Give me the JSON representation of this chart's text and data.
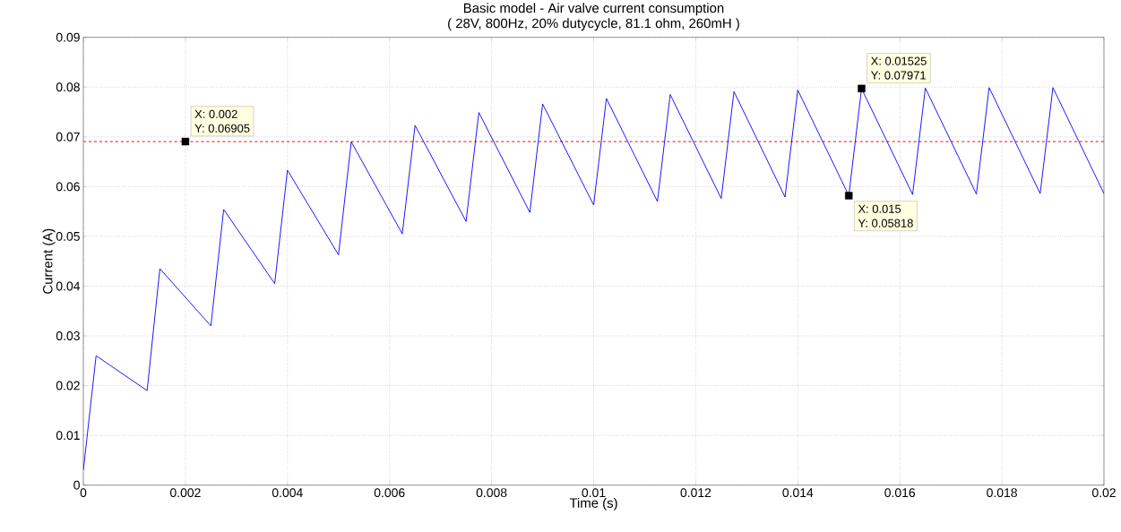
{
  "chart_data": {
    "type": "line",
    "title": "Basic model - Air valve current consumption",
    "subtitle": "( 28V, 800Hz, 20% dutycycle, 81.1 ohm, 260mH )",
    "xlabel": "Time (s)",
    "ylabel": "Current (A)",
    "xlim": [
      0,
      0.02
    ],
    "ylim": [
      0,
      0.09
    ],
    "xticks": [
      0,
      0.002,
      0.004,
      0.006,
      0.008,
      0.01,
      0.012,
      0.014,
      0.016,
      0.018,
      0.02
    ],
    "yticks": [
      0,
      0.01,
      0.02,
      0.03,
      0.04,
      0.05,
      0.06,
      0.07,
      0.08,
      0.09
    ],
    "grid": true,
    "marker": "none",
    "line_style": "solid",
    "series": [
      {
        "color": "#0000ff",
        "x": [
          0,
          0.00025,
          0.00125,
          0.0015,
          0.0025,
          0.00275,
          0.00375,
          0.004,
          0.005,
          0.00525,
          0.00625,
          0.0065,
          0.0075,
          0.00775,
          0.00875,
          0.009,
          0.01,
          0.01025,
          0.01125,
          0.0115,
          0.0125,
          0.01275,
          0.01375,
          0.014,
          0.015,
          0.01525,
          0.01625,
          0.0165,
          0.0175,
          0.01775,
          0.01875,
          0.019,
          0.02
        ],
        "values": [
          0.003,
          0.026,
          0.019,
          0.0435,
          0.032,
          0.0554,
          0.0405,
          0.0633,
          0.0463,
          0.069,
          0.0505,
          0.0723,
          0.053,
          0.0749,
          0.0548,
          0.0766,
          0.0563,
          0.0777,
          0.057,
          0.0785,
          0.0576,
          0.0791,
          0.0579,
          0.0794,
          0.0582,
          0.0797,
          0.0584,
          0.0798,
          0.0585,
          0.0799,
          0.0586,
          0.0799,
          0.0586
        ]
      },
      {
        "type": "scatter",
        "color": "#000000",
        "marker": "square",
        "x": [
          0.002,
          0.01525,
          0.015
        ],
        "values": [
          0.06905,
          0.07971,
          0.05818
        ]
      }
    ],
    "ref_lines": [
      {
        "axis": "y",
        "value": 0.06905,
        "color": "#ff0000",
        "line_style": "dashed"
      }
    ],
    "annotations": [
      {
        "text": "X: 0.002",
        "x": 0.002,
        "y": 0.06905
      },
      {
        "text": "Y: 0.06905",
        "x": 0.002,
        "y": 0.06905
      },
      {
        "text": "X: 0.01525",
        "x": 0.01525,
        "y": 0.07971
      },
      {
        "text": "Y: 0.07971",
        "x": 0.01525,
        "y": 0.07971
      },
      {
        "text": "X: 0.015",
        "x": 0.015,
        "y": 0.05818
      },
      {
        "text": "Y: 0.05818",
        "x": 0.015,
        "y": 0.05818
      }
    ]
  }
}
